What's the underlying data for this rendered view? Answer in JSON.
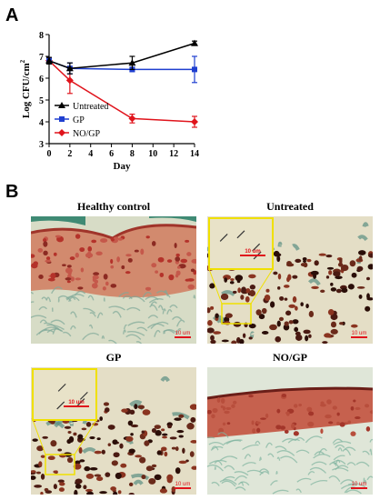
{
  "panel_a_letter": "A",
  "panel_b_letter": "B",
  "chart_data": {
    "type": "line",
    "title": "",
    "xlabel": "Day",
    "ylabel": "Log CFU/cm",
    "ylabel_superscript": "2",
    "x": [
      0,
      2,
      8,
      14
    ],
    "xlim": [
      0,
      14
    ],
    "ylim": [
      3,
      8
    ],
    "x_ticks": [
      0,
      2,
      4,
      6,
      8,
      10,
      12,
      14
    ],
    "y_ticks": [
      3,
      4,
      5,
      6,
      7,
      8
    ],
    "legend_position": "bottom-left",
    "series": [
      {
        "name": "Untreated",
        "color": "#000000",
        "marker": "triangle",
        "values": [
          6.8,
          6.45,
          6.7,
          7.6
        ],
        "errors": [
          0.15,
          0.25,
          0.3,
          0.1
        ]
      },
      {
        "name": "GP",
        "color": "#1f3fd0",
        "marker": "square",
        "values": [
          6.8,
          6.45,
          6.4,
          6.4
        ],
        "errors": [
          0.15,
          0.25,
          0.1,
          0.6
        ]
      },
      {
        "name": "NO/GP",
        "color": "#e0141c",
        "marker": "diamond",
        "values": [
          6.8,
          5.9,
          4.15,
          4.0
        ],
        "errors": [
          0.15,
          0.6,
          0.2,
          0.25
        ]
      }
    ]
  },
  "panels": [
    {
      "title": "Healthy control",
      "type": "healthy",
      "scale_label": "10 um"
    },
    {
      "title": "Untreated",
      "type": "infected",
      "scale_label": "10 um",
      "inset_label": "10 um"
    },
    {
      "title": "GP",
      "type": "infected",
      "scale_label": "10 um",
      "inset_label": "10 um"
    },
    {
      "title": "NO/GP",
      "type": "healed",
      "scale_label": "10 um"
    }
  ]
}
